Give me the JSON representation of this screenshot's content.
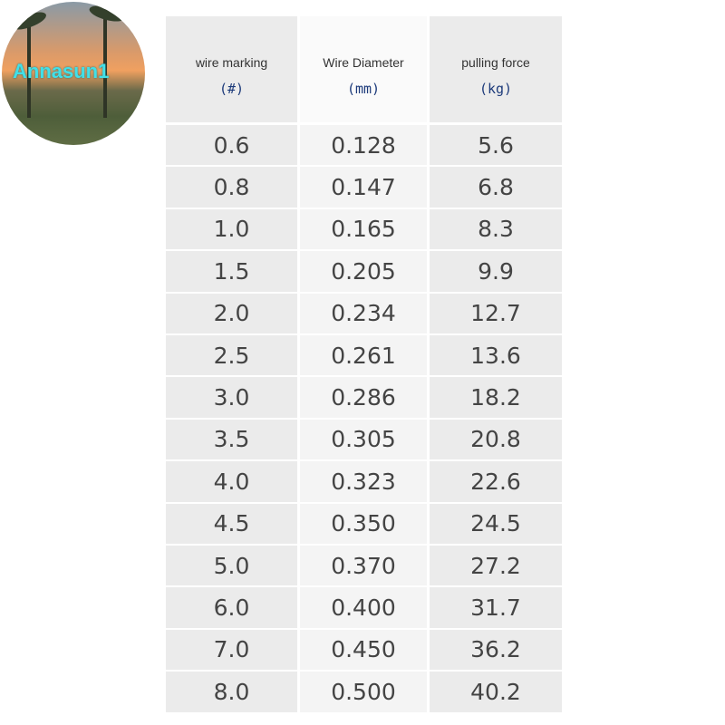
{
  "logo": {
    "text": "Annasun1"
  },
  "header": {
    "columns": [
      {
        "label": "wire marking",
        "unit": "(#)"
      },
      {
        "label": "Wire Diameter",
        "unit": "(mm)"
      },
      {
        "label": "pulling force",
        "unit": "(kg)"
      }
    ]
  },
  "table": {
    "rows": [
      [
        "0.6",
        "0.128",
        "5.6"
      ],
      [
        "0.8",
        "0.147",
        "6.8"
      ],
      [
        "1.0",
        "0.165",
        "8.3"
      ],
      [
        "1.5",
        "0.205",
        "9.9"
      ],
      [
        "2.0",
        "0.234",
        "12.7"
      ],
      [
        "2.5",
        "0.261",
        "13.6"
      ],
      [
        "3.0",
        "0.286",
        "18.2"
      ],
      [
        "3.5",
        "0.305",
        "20.8"
      ],
      [
        "4.0",
        "0.323",
        "22.6"
      ],
      [
        "4.5",
        "0.350",
        "24.5"
      ],
      [
        "5.0",
        "0.370",
        "27.2"
      ],
      [
        "6.0",
        "0.400",
        "31.7"
      ],
      [
        "7.0",
        "0.450",
        "36.2"
      ],
      [
        "8.0",
        "0.500",
        "40.2"
      ]
    ]
  }
}
